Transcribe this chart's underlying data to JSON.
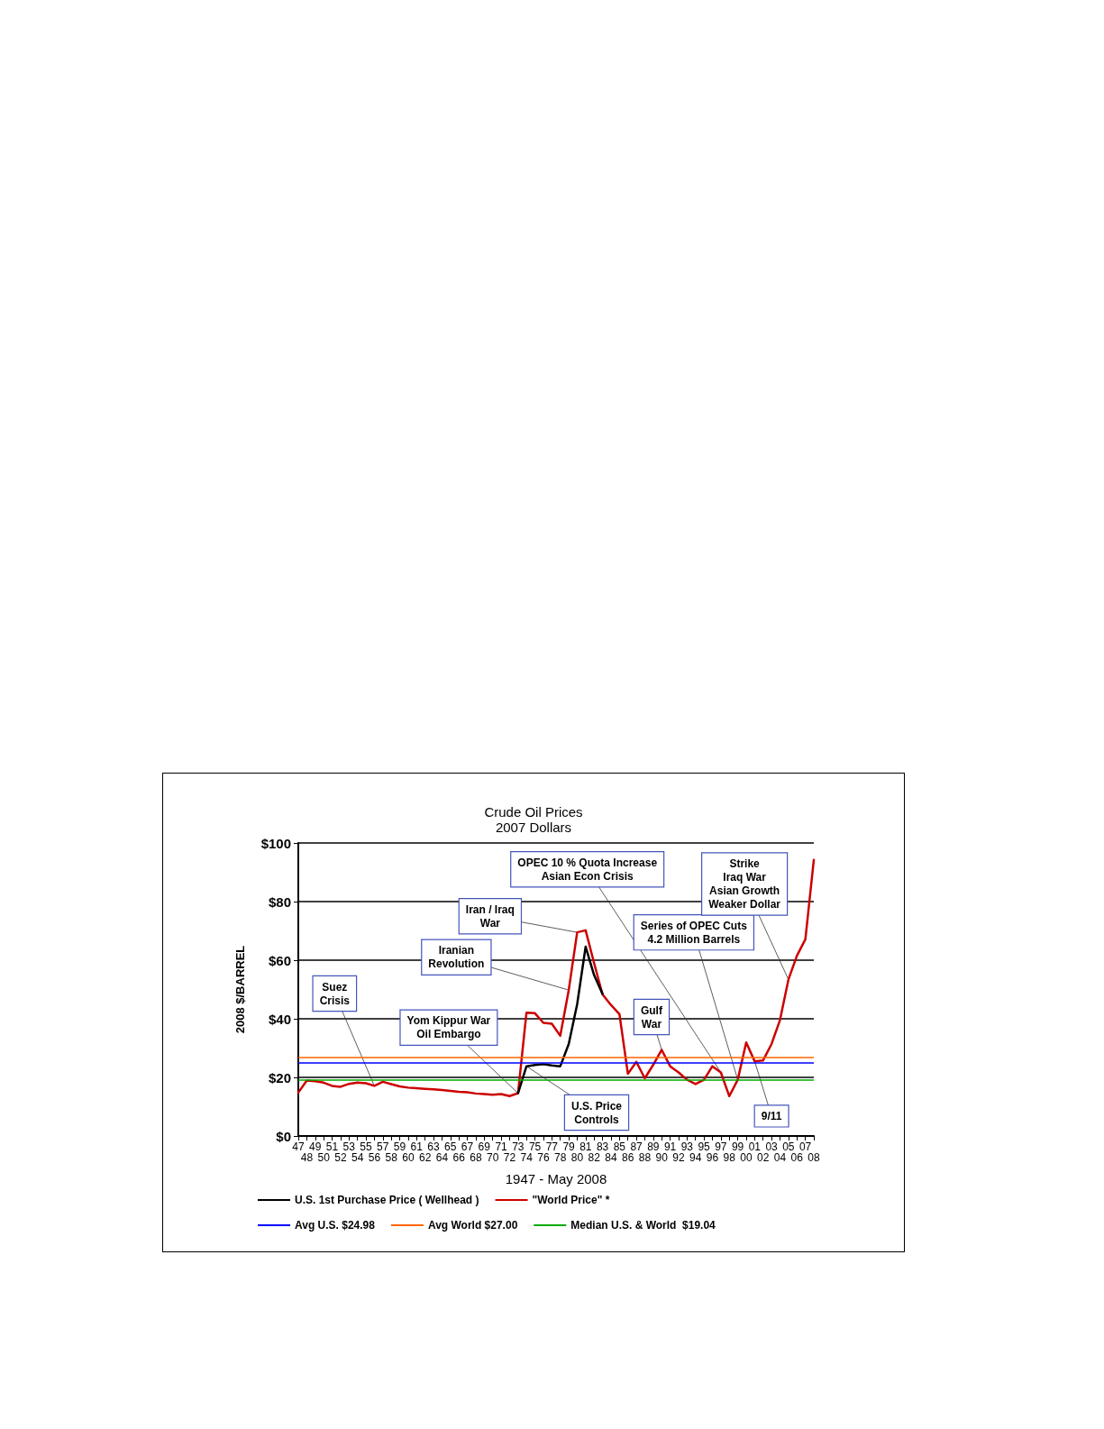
{
  "chart_data": {
    "type": "line",
    "title": "Crude Oil Prices",
    "subtitle": "2007 Dollars",
    "xlabel": "1947 - May 2008",
    "ylabel": "2008 $/BARREL",
    "categories": [
      "47",
      "48",
      "49",
      "50",
      "51",
      "52",
      "53",
      "54",
      "55",
      "56",
      "57",
      "58",
      "59",
      "60",
      "61",
      "62",
      "63",
      "64",
      "65",
      "66",
      "67",
      "68",
      "69",
      "70",
      "71",
      "72",
      "73",
      "74",
      "75",
      "76",
      "77",
      "78",
      "79",
      "80",
      "81",
      "82",
      "83",
      "84",
      "85",
      "86",
      "87",
      "88",
      "89",
      "90",
      "91",
      "92",
      "93",
      "94",
      "95",
      "96",
      "97",
      "98",
      "99",
      "00",
      "01",
      "02",
      "03",
      "04",
      "05",
      "06",
      "07",
      "08"
    ],
    "series": [
      {
        "name": "U.S. 1st Purchase Price ( Wellhead )",
        "color": "#000000",
        "values": [
          null,
          null,
          null,
          null,
          null,
          null,
          null,
          null,
          null,
          null,
          null,
          null,
          null,
          null,
          null,
          null,
          null,
          null,
          null,
          null,
          null,
          null,
          null,
          null,
          null,
          null,
          14.6,
          23.8,
          24.2,
          24.5,
          24.1,
          23.8,
          31.4,
          45.0,
          64.6,
          54.9,
          48.5,
          null,
          null,
          null,
          null,
          null,
          null,
          null,
          null,
          null,
          null,
          null,
          null,
          null,
          null,
          null,
          null,
          null,
          null,
          null,
          null,
          null,
          null,
          null,
          null,
          null
        ]
      },
      {
        "name": "\"World Price\" *",
        "color": "#cc0000",
        "values": [
          14.8,
          18.9,
          18.7,
          18.2,
          17.1,
          16.8,
          17.8,
          18.2,
          18.0,
          17.1,
          18.5,
          17.7,
          16.9,
          16.5,
          16.3,
          16.1,
          15.9,
          15.7,
          15.4,
          15.1,
          14.9,
          14.5,
          14.3,
          14.1,
          14.3,
          13.6,
          14.6,
          42.1,
          41.9,
          38.6,
          38.3,
          34.2,
          49.8,
          69.5,
          70.2,
          59.0,
          48.3,
          44.7,
          41.6,
          21.2,
          25.3,
          19.7,
          24.3,
          29.4,
          23.8,
          21.7,
          19.2,
          17.7,
          19.2,
          23.8,
          21.7,
          13.6,
          19.2,
          31.9,
          25.5,
          25.8,
          31.4,
          39.6,
          53.4,
          61.5,
          67.1,
          94.2
        ]
      }
    ],
    "ref_lines": [
      {
        "axis": "y",
        "value": 24.98,
        "label": "Avg U.S. $24.98",
        "color": "#0000ff"
      },
      {
        "axis": "y",
        "value": 27.0,
        "label": "Avg World $27.00",
        "color": "#ff6600"
      },
      {
        "axis": "y",
        "value": 19.04,
        "label": "Median U.S. & World  $19.04",
        "color": "#00aa00"
      }
    ],
    "annotations": [
      {
        "text": "Suez\nCrisis",
        "x": "56",
        "y": 17.1
      },
      {
        "text": "Yom Kippur War\nOil Embargo",
        "x": "73",
        "y": 14.6
      },
      {
        "text": "Iranian\nRevolution",
        "x": "79",
        "y": 49.8
      },
      {
        "text": "Iran / Iraq\nWar",
        "x": "80",
        "y": 69.5
      },
      {
        "text": "U.S. Price\nControls",
        "x": "74",
        "y": 23.8
      },
      {
        "text": "OPEC 10 % Quota Increase\nAsian Econ Crisis",
        "x": "97",
        "y": 21.7
      },
      {
        "text": "Series of OPEC Cuts\n4.2 Million Barrels",
        "x": "99",
        "y": 19.2
      },
      {
        "text": "Gulf\nWar",
        "x": "90",
        "y": 29.4
      },
      {
        "text": "Strike\nIraq War\nAsian Growth\nWeaker Dollar",
        "x": "05",
        "y": 53.4
      },
      {
        "text": "9/11",
        "x": "01",
        "y": 25.5
      }
    ],
    "ylim": [
      0,
      100
    ],
    "yticks": [
      {
        "value": 0,
        "label": "$0"
      },
      {
        "value": 20,
        "label": "$20"
      },
      {
        "value": 40,
        "label": "$40"
      },
      {
        "value": 60,
        "label": "$60"
      },
      {
        "value": 80,
        "label": "$80"
      },
      {
        "value": 100,
        "label": "$100"
      }
    ],
    "grid": "y",
    "legend": "bottom",
    "marker": "none",
    "line_style": "solid"
  }
}
